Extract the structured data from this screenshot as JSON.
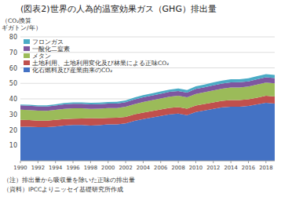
{
  "chart_data": {
    "type": "area",
    "stacked": true,
    "title": "(図表2)世界の人為的温室効果ガス（GHG）排出量",
    "ylabel": [
      "（CO₂換算",
      "ギガトン/年）"
    ],
    "annotations": [
      "（注）排出量から吸収量を除いた正味の排出量",
      "（資料）IPCCよりニッセイ基礎研究所作成"
    ],
    "x": [
      1990,
      1991,
      1992,
      1993,
      1994,
      1995,
      1996,
      1997,
      1998,
      1999,
      2000,
      2001,
      2002,
      2003,
      2004,
      2005,
      2006,
      2007,
      2008,
      2009,
      2010,
      2011,
      2012,
      2013,
      2014,
      2015,
      2016,
      2017,
      2018,
      2019
    ],
    "series": [
      {
        "name": "化石燃料及び産業由来のCO₂",
        "color": "#4472C4",
        "values": [
          22.0,
          22.0,
          21.8,
          21.8,
          22.2,
          22.8,
          23.2,
          23.2,
          22.8,
          23.0,
          23.5,
          23.5,
          24.2,
          25.8,
          27.0,
          28.0,
          29.0,
          30.0,
          30.5,
          29.5,
          31.5,
          32.5,
          33.5,
          34.5,
          35.0,
          35.0,
          35.5,
          36.5,
          37.5,
          37.0
        ]
      },
      {
        "name": "土地利用、土地利用変化及び林業による正味CO₂",
        "color": "#C0504D",
        "values": [
          4.5,
          4.3,
          4.2,
          4.1,
          4.2,
          4.2,
          4.0,
          4.2,
          4.8,
          4.5,
          4.2,
          4.3,
          4.2,
          4.2,
          4.2,
          4.2,
          4.2,
          4.2,
          4.2,
          4.2,
          4.2,
          4.2,
          4.2,
          4.2,
          4.3,
          4.3,
          4.3,
          4.3,
          4.5,
          4.5
        ]
      },
      {
        "name": "メタン",
        "color": "#9BBB59",
        "values": [
          6.5,
          6.5,
          6.4,
          6.4,
          6.5,
          6.6,
          6.7,
          6.5,
          6.0,
          6.2,
          6.3,
          6.3,
          6.5,
          6.6,
          6.8,
          6.9,
          7.0,
          7.2,
          7.3,
          7.3,
          7.5,
          7.6,
          7.8,
          7.9,
          8.0,
          8.1,
          8.2,
          8.4,
          8.5,
          8.5
        ]
      },
      {
        "name": "一酸化二窒素",
        "color": "#7E57A0",
        "values": [
          2.8,
          2.8,
          2.8,
          2.8,
          2.8,
          2.9,
          2.9,
          2.9,
          2.9,
          2.9,
          2.9,
          2.9,
          2.9,
          3.0,
          3.0,
          3.0,
          3.1,
          3.1,
          3.1,
          3.1,
          3.2,
          3.2,
          3.2,
          3.3,
          3.3,
          3.3,
          3.3,
          3.4,
          3.4,
          3.4
        ]
      },
      {
        "name": "フロンガス",
        "color": "#4BACC6",
        "values": [
          0.5,
          0.6,
          0.6,
          0.7,
          0.7,
          0.8,
          0.9,
          0.9,
          1.0,
          1.0,
          1.1,
          1.1,
          1.2,
          1.3,
          1.4,
          1.4,
          1.5,
          1.5,
          1.6,
          1.6,
          1.7,
          1.8,
          1.9,
          1.9,
          2.0,
          2.0,
          2.0,
          2.1,
          2.1,
          2.1
        ]
      }
    ],
    "xlim": [
      1990,
      2019
    ],
    "xticks": [
      1990,
      1992,
      1994,
      1996,
      1998,
      2000,
      2002,
      2004,
      2006,
      2008,
      2010,
      2012,
      2014,
      2016,
      2018
    ],
    "ylim": [
      0,
      80
    ],
    "yticks": [
      10,
      20,
      30,
      40,
      50,
      60,
      70,
      80
    ],
    "grid": true,
    "legend": "upper left"
  }
}
